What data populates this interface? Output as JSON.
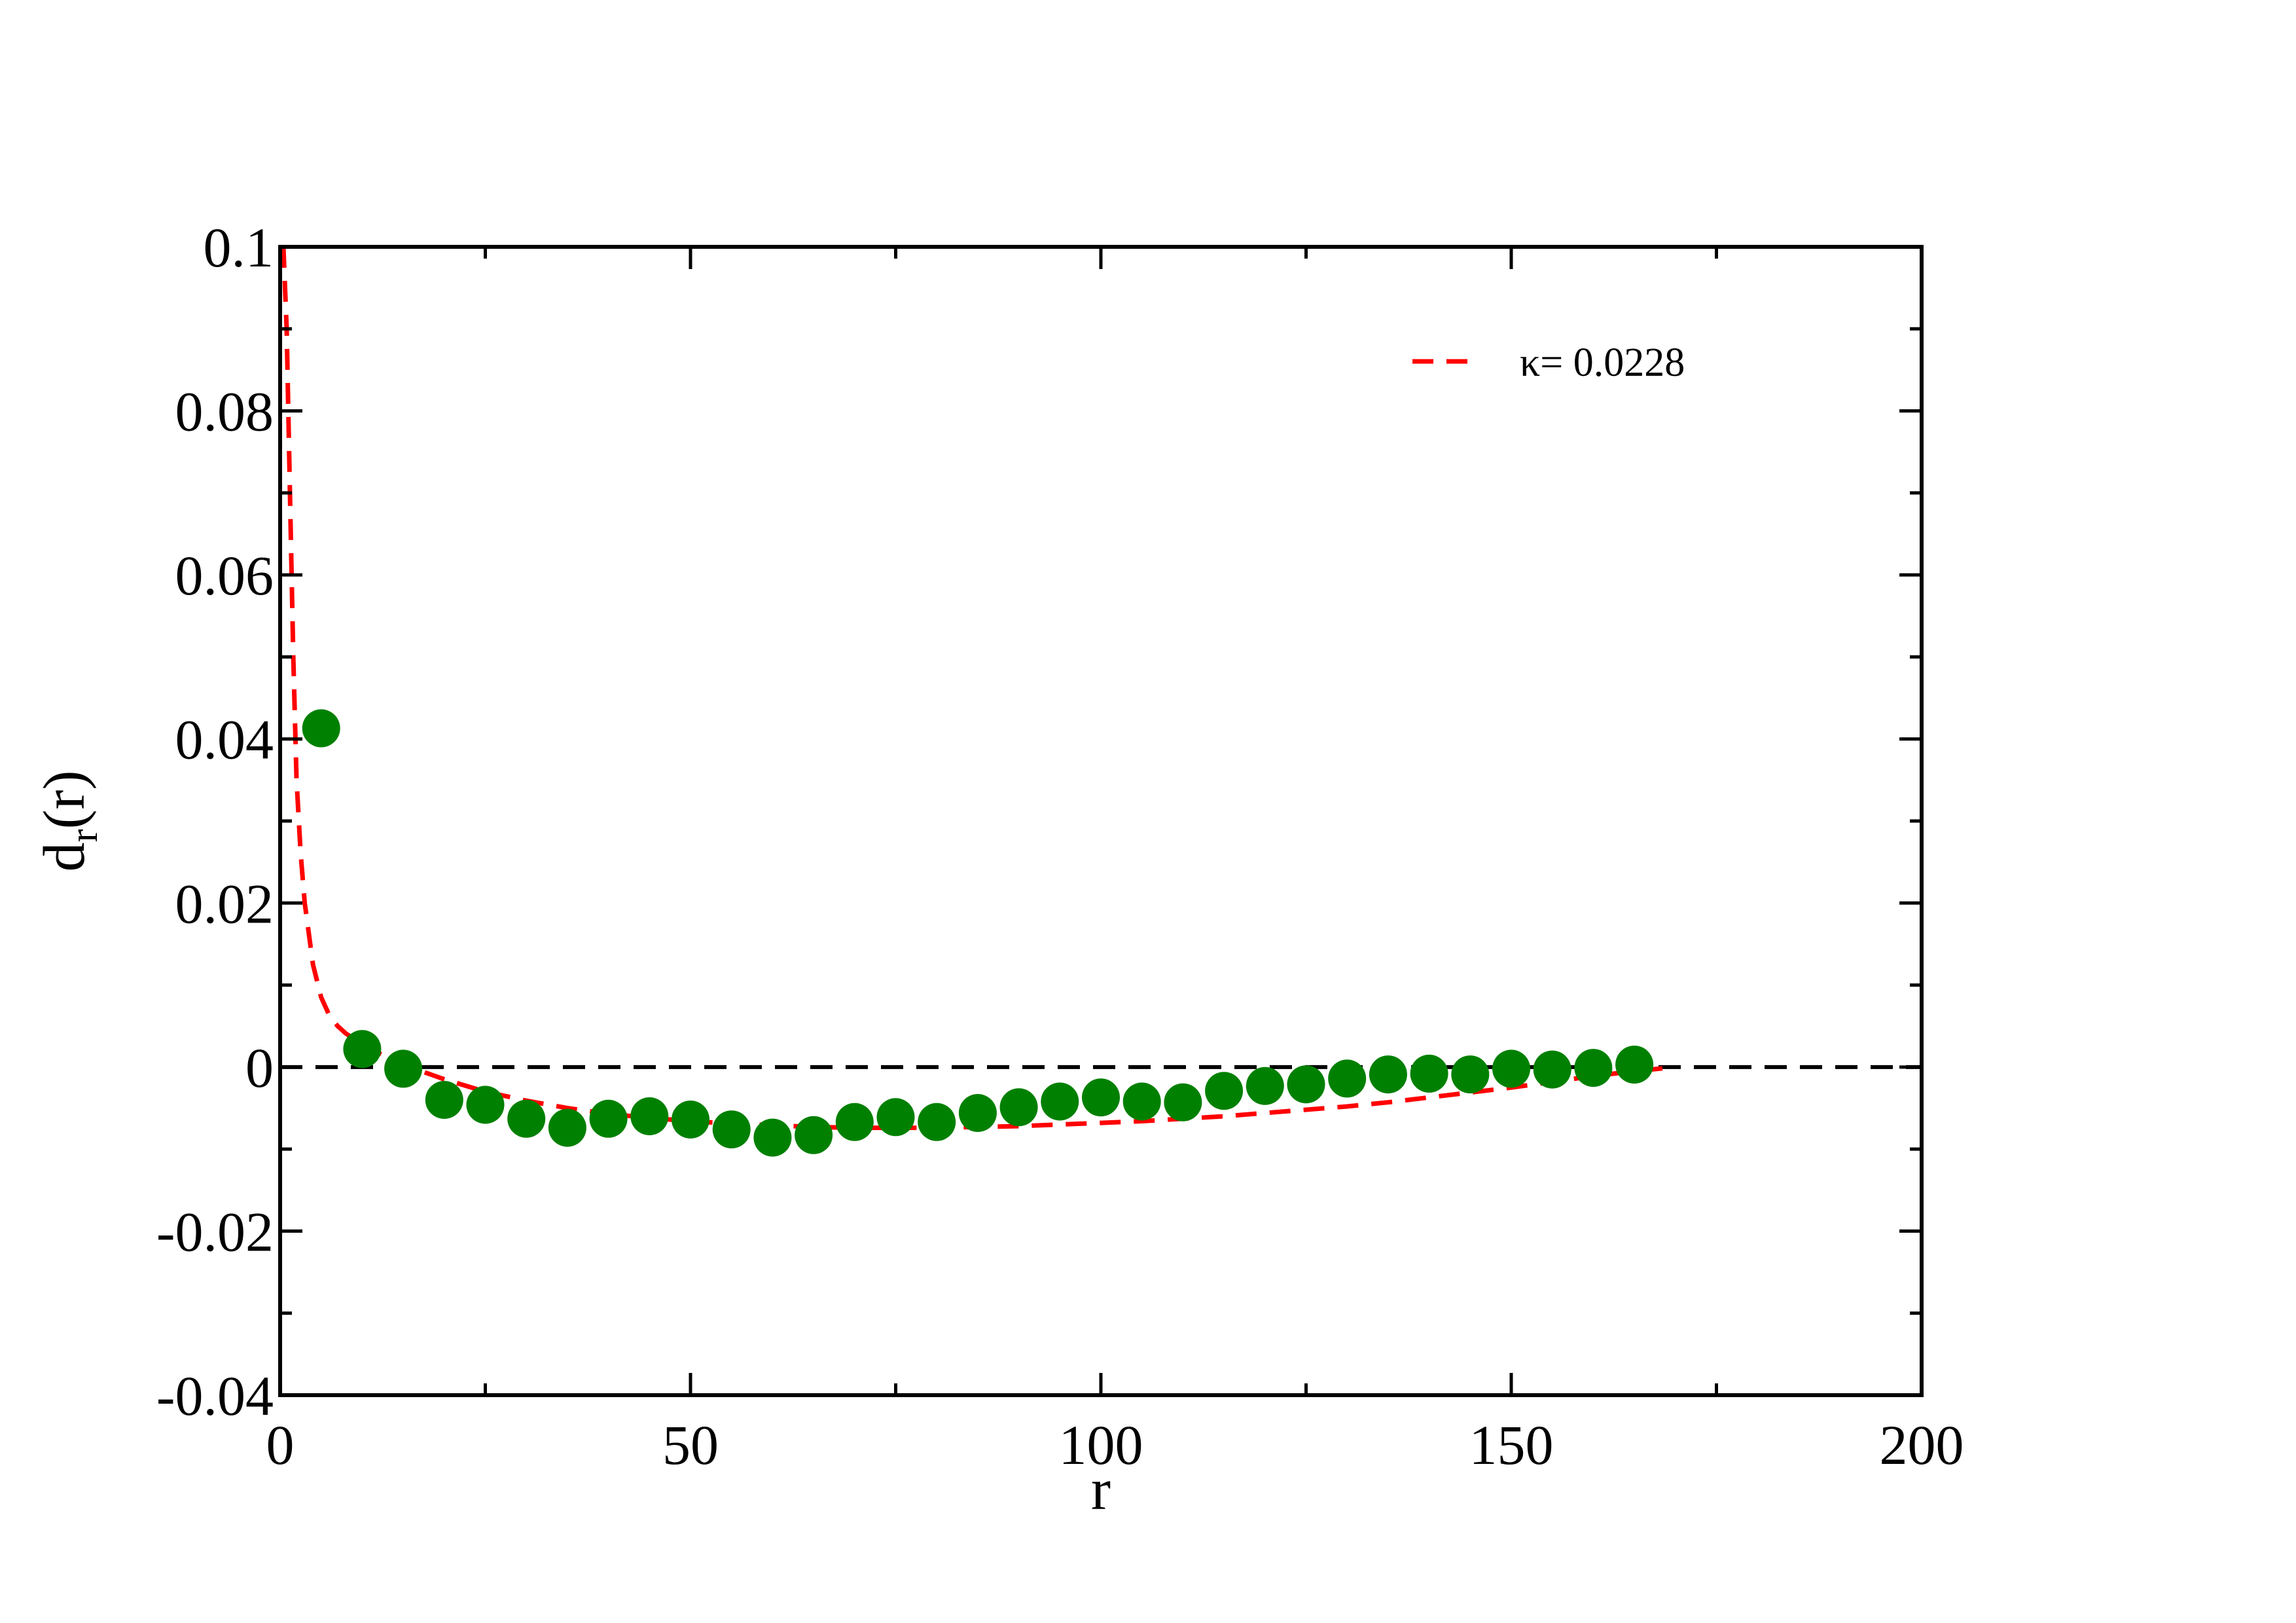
{
  "chart_data": {
    "type": "scatter",
    "xlabel": "r",
    "ylabel_main": "d",
    "ylabel_sub": "r",
    "ylabel_tail": "(r)",
    "xlim": [
      0,
      200
    ],
    "ylim": [
      -0.04,
      0.1
    ],
    "x_ticks": [
      0,
      50,
      100,
      150,
      200
    ],
    "x_tick_labels": [
      "0",
      "50",
      "100",
      "150",
      "200"
    ],
    "y_ticks": [
      -0.04,
      -0.02,
      0,
      0.02,
      0.04,
      0.06,
      0.08,
      0.1
    ],
    "y_tick_labels": [
      "-0.04",
      "-0.02",
      "0",
      "0.02",
      "0.04",
      "0.06",
      "0.08",
      "0.1"
    ],
    "x_minor_step": 25,
    "y_minor_step": 0.01,
    "grid": false,
    "legend_position": "top-right",
    "reference_line": {
      "y": 0,
      "style": "dashed",
      "color": "#000000"
    },
    "series": [
      {
        "kind": "points",
        "color": "#008000",
        "x": [
          5,
          10,
          15,
          20,
          25,
          30,
          35,
          40,
          45,
          50,
          55,
          60,
          65,
          70,
          75,
          80,
          85,
          90,
          95,
          100,
          105,
          110,
          115,
          120,
          125,
          130,
          135,
          140,
          145,
          150,
          155,
          160,
          165
        ],
        "y": [
          0.0413,
          0.0022,
          -0.0002,
          -0.004,
          -0.0046,
          -0.0063,
          -0.0074,
          -0.0063,
          -0.006,
          -0.0064,
          -0.0076,
          -0.0086,
          -0.0083,
          -0.0067,
          -0.0061,
          -0.0067,
          -0.0056,
          -0.0049,
          -0.0042,
          -0.0037,
          -0.0042,
          -0.0043,
          -0.0029,
          -0.0023,
          -0.0021,
          -0.0014,
          -0.0009,
          -0.0008,
          -0.0009,
          -0.0002,
          -0.0003,
          -0.0001,
          0.0003
        ]
      },
      {
        "kind": "dashed-line",
        "name": "κ= 0.0228",
        "color": "#ff0000",
        "x": [
          0.4,
          0.8,
          1.2,
          1.6,
          2,
          2.5,
          3,
          4,
          5,
          6,
          7,
          8,
          10,
          12,
          15,
          20,
          25,
          30,
          35,
          40,
          45,
          50,
          55,
          60,
          65,
          70,
          75,
          80,
          85,
          90,
          95,
          100,
          105,
          110,
          115,
          120,
          125,
          130,
          135,
          140,
          145,
          150,
          155,
          160,
          165,
          170
        ],
        "y": [
          0.1,
          0.09,
          0.07,
          0.05,
          0.035,
          0.026,
          0.02,
          0.0125,
          0.0085,
          0.0063,
          0.005,
          0.0041,
          0.0028,
          0.0017,
          0.0003,
          -0.0015,
          -0.003,
          -0.0041,
          -0.005,
          -0.0057,
          -0.0062,
          -0.0066,
          -0.0069,
          -0.0071,
          -0.0073,
          -0.0074,
          -0.0074,
          -0.0074,
          -0.0073,
          -0.0072,
          -0.007,
          -0.0068,
          -0.0066,
          -0.0063,
          -0.006,
          -0.0056,
          -0.0052,
          -0.0048,
          -0.0043,
          -0.0037,
          -0.0031,
          -0.0025,
          -0.0018,
          -0.0011,
          -0.0005,
          0
        ]
      }
    ]
  }
}
